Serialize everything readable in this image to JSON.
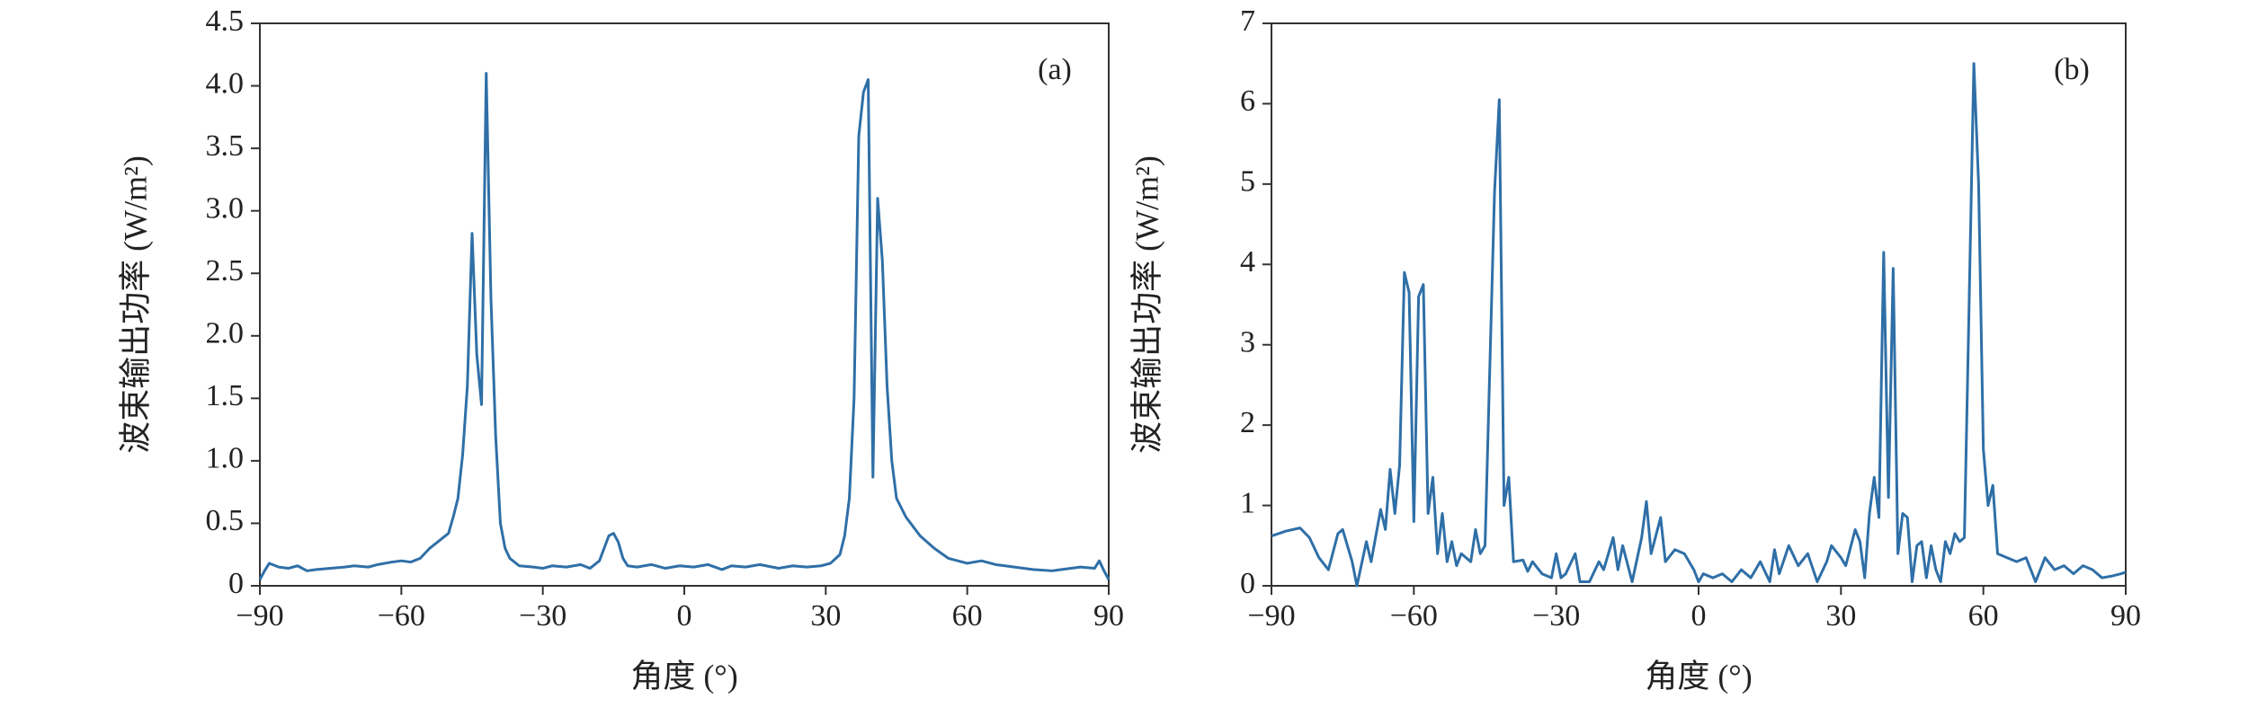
{
  "chart_data": [
    {
      "type": "line",
      "panel_label": "(a)",
      "xlabel": "角度 (°)",
      "ylabel": "波束输出功率 (W/m²)",
      "color": "#2f6fa7",
      "xlim": [
        -90,
        90
      ],
      "xticks": [
        {
          "value": -90,
          "label": "−90"
        },
        {
          "value": -60,
          "label": "−60"
        },
        {
          "value": -30,
          "label": "−30"
        },
        0,
        30,
        60,
        90
      ],
      "ylim": [
        0,
        4.5
      ],
      "yticks": [
        0,
        0.5,
        {
          "value": 1,
          "label": "1.0"
        },
        1.5,
        {
          "value": 2,
          "label": "2.0"
        },
        2.5,
        {
          "value": 3,
          "label": "3.0"
        },
        3.5,
        {
          "value": 4,
          "label": "4.0"
        },
        4.5
      ],
      "x": [
        -90,
        -89,
        -88,
        -86,
        -84,
        -82,
        -80,
        -78,
        -75,
        -72,
        -70,
        -67,
        -65,
        -62,
        -60,
        -58,
        -56,
        -54,
        -52,
        -50,
        -49,
        -48,
        -47,
        -46,
        -45,
        -44,
        -43,
        -42,
        -41,
        -40,
        -39,
        -38,
        -37,
        -35,
        -32,
        -30,
        -28,
        -25,
        -22,
        -20,
        -18,
        -17,
        -16,
        -15,
        -14,
        -13,
        -12,
        -10,
        -7,
        -4,
        -1,
        2,
        5,
        8,
        10,
        13,
        16,
        20,
        23,
        26,
        29,
        31,
        33,
        34,
        35,
        36,
        37,
        38,
        39,
        40,
        41,
        42,
        43,
        44,
        45,
        47,
        50,
        53,
        56,
        58,
        60,
        63,
        66,
        70,
        74,
        78,
        80,
        84,
        87,
        88,
        89,
        90
      ],
      "values": [
        0.05,
        0.12,
        0.18,
        0.15,
        0.14,
        0.16,
        0.12,
        0.13,
        0.14,
        0.15,
        0.16,
        0.15,
        0.17,
        0.19,
        0.2,
        0.19,
        0.22,
        0.3,
        0.36,
        0.42,
        0.55,
        0.7,
        1.05,
        1.6,
        2.82,
        1.85,
        1.45,
        4.1,
        2.3,
        1.2,
        0.5,
        0.3,
        0.22,
        0.16,
        0.15,
        0.14,
        0.16,
        0.15,
        0.17,
        0.14,
        0.2,
        0.3,
        0.4,
        0.42,
        0.35,
        0.22,
        0.16,
        0.15,
        0.17,
        0.14,
        0.16,
        0.15,
        0.17,
        0.13,
        0.16,
        0.15,
        0.17,
        0.14,
        0.16,
        0.15,
        0.16,
        0.18,
        0.25,
        0.4,
        0.7,
        1.5,
        3.6,
        3.95,
        4.05,
        0.87,
        3.1,
        2.6,
        1.6,
        1.0,
        0.7,
        0.55,
        0.4,
        0.3,
        0.22,
        0.2,
        0.18,
        0.2,
        0.17,
        0.15,
        0.13,
        0.12,
        0.13,
        0.15,
        0.14,
        0.2,
        0.12,
        0.05
      ]
    },
    {
      "type": "line",
      "panel_label": "(b)",
      "xlabel": "角度 (°)",
      "ylabel": "波束输出功率 (W/m²)",
      "color": "#2f6fa7",
      "xlim": [
        -90,
        90
      ],
      "xticks": [
        {
          "value": -90,
          "label": "−90"
        },
        {
          "value": -60,
          "label": "−60"
        },
        {
          "value": -30,
          "label": "−30"
        },
        0,
        30,
        60,
        90
      ],
      "ylim": [
        0,
        7
      ],
      "yticks": [
        0,
        1,
        2,
        3,
        4,
        5,
        6,
        7
      ],
      "x": [
        -90,
        -87,
        -84,
        -82,
        -80,
        -78,
        -76,
        -75,
        -73,
        -72,
        -70,
        -69,
        -67,
        -66,
        -65,
        -64,
        -63,
        -62,
        -61,
        -60,
        -59,
        -58,
        -57,
        -56,
        -55,
        -54,
        -53,
        -52,
        -51,
        -50,
        -48,
        -47,
        -46,
        -45,
        -43,
        -42,
        -41,
        -40,
        -39,
        -37,
        -36,
        -35,
        -33,
        -31,
        -30,
        -29,
        -28,
        -26,
        -25,
        -23,
        -21,
        -20,
        -18,
        -17,
        -16,
        -14,
        -12,
        -11,
        -10,
        -8,
        -7,
        -5,
        -3,
        -1,
        0,
        1,
        3,
        5,
        7,
        9,
        11,
        13,
        15,
        16,
        17,
        19,
        21,
        23,
        25,
        27,
        28,
        30,
        31,
        33,
        34,
        35,
        36,
        37,
        38,
        39,
        40,
        41,
        42,
        43,
        44,
        45,
        46,
        47,
        48,
        49,
        50,
        51,
        52,
        53,
        54,
        55,
        56,
        57,
        58,
        59,
        60,
        61,
        62,
        63,
        65,
        67,
        69,
        71,
        73,
        75,
        77,
        79,
        81,
        83,
        85,
        87,
        89,
        90
      ],
      "values": [
        0.62,
        0.68,
        0.72,
        0.6,
        0.35,
        0.2,
        0.65,
        0.7,
        0.3,
        0.0,
        0.55,
        0.3,
        0.95,
        0.7,
        1.45,
        0.9,
        1.5,
        3.9,
        3.65,
        0.8,
        3.6,
        3.75,
        0.9,
        1.35,
        0.4,
        0.9,
        0.3,
        0.55,
        0.25,
        0.4,
        0.3,
        0.7,
        0.4,
        0.5,
        4.9,
        6.05,
        1.0,
        1.35,
        0.3,
        0.32,
        0.18,
        0.3,
        0.15,
        0.1,
        0.4,
        0.1,
        0.15,
        0.4,
        0.05,
        0.05,
        0.3,
        0.2,
        0.6,
        0.2,
        0.5,
        0.05,
        0.6,
        1.05,
        0.4,
        0.85,
        0.3,
        0.45,
        0.4,
        0.2,
        0.05,
        0.15,
        0.1,
        0.15,
        0.05,
        0.2,
        0.1,
        0.3,
        0.05,
        0.45,
        0.15,
        0.5,
        0.25,
        0.4,
        0.05,
        0.3,
        0.5,
        0.35,
        0.25,
        0.7,
        0.55,
        0.1,
        0.9,
        1.35,
        0.85,
        4.15,
        1.1,
        3.95,
        0.4,
        0.9,
        0.85,
        0.05,
        0.5,
        0.55,
        0.1,
        0.5,
        0.2,
        0.05,
        0.55,
        0.4,
        0.65,
        0.55,
        0.6,
        3.5,
        6.5,
        5.0,
        1.7,
        1.0,
        1.25,
        0.4,
        0.35,
        0.3,
        0.35,
        0.05,
        0.35,
        0.2,
        0.25,
        0.15,
        0.25,
        0.2,
        0.1,
        0.12,
        0.15,
        0.17
      ]
    }
  ]
}
